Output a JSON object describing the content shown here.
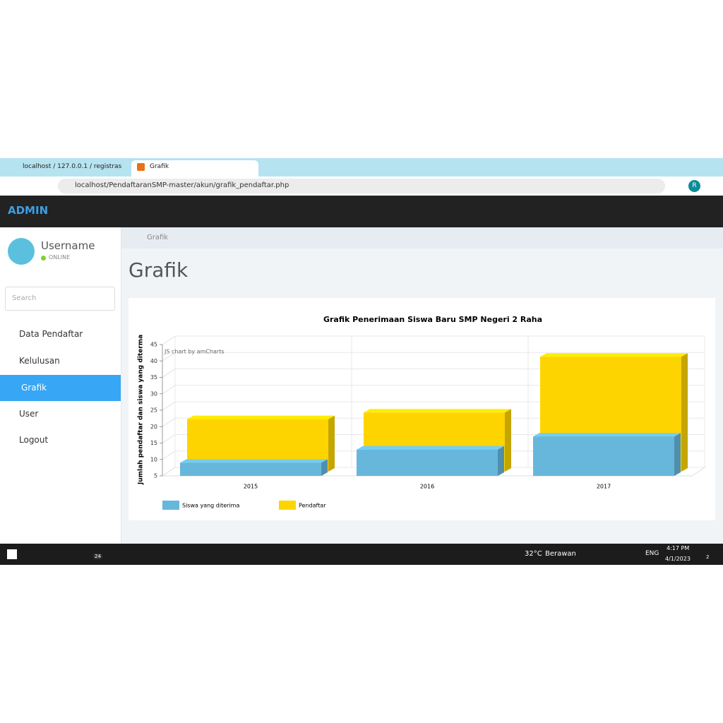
{
  "browser": {
    "tabs": [
      "localhost / 127.0.0.1 / registrasis",
      "Grafik"
    ],
    "url": "localhost/PendaftaranSMP-master/akun/grafik_pendaftar.php",
    "profile": "R"
  },
  "header": {
    "brand": "ADMIN"
  },
  "sidebar": {
    "username": "Username",
    "status": "ONLINE",
    "search_placeholder": "Search",
    "menu": [
      "Data Pendaftar",
      "Kelulusan",
      "Grafik",
      "User",
      "Logout"
    ]
  },
  "breadcrumb": "Grafik",
  "page_title": "Grafik",
  "chart_data": {
    "type": "bar",
    "title": "Grafik Penerimaan Siswa Baru SMP Negeri 2 Raha",
    "y_label": "Jumlah pendaftar dan siswa yang diterma",
    "watermark": "JS chart by amCharts",
    "categories": [
      "2015",
      "2016",
      "2017"
    ],
    "series": [
      {
        "name": "Siswa yang diterima",
        "color": "#67b7dc",
        "values": [
          9,
          13,
          17
        ]
      },
      {
        "name": "Pendaftar",
        "color": "#fdd400",
        "values": [
          21,
          23,
          40
        ]
      }
    ],
    "ylim": [
      5,
      45
    ],
    "yticks": [
      5,
      10,
      15,
      20,
      25,
      30,
      35,
      40,
      45
    ],
    "grid": true,
    "legend": "bottom-left"
  },
  "taskbar": {
    "badge_mail": "24",
    "weather": "32°C",
    "weather_desc": "Berawan",
    "lang": "ENG",
    "time": "4:17 PM",
    "date": "4/1/2023",
    "notifications": "2"
  }
}
